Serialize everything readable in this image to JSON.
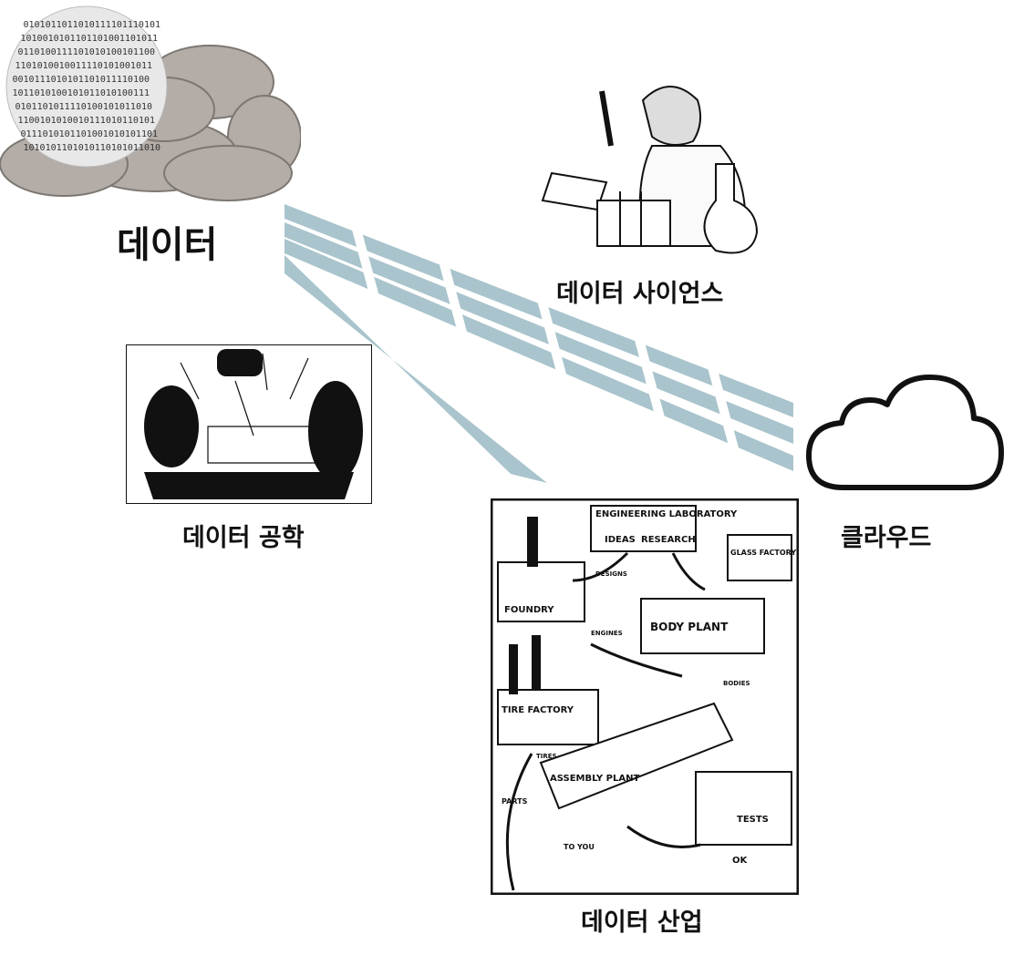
{
  "labels": {
    "data": "데이터",
    "data_science": "데이터 사이언스",
    "data_engineering": "데이터 공학",
    "cloud": "클라우드",
    "data_industry": "데이터 산업"
  },
  "binary_rows": [
    "0101011011010111101110101",
    "1010010101101101001101011",
    "0110100111101010100101100",
    "1101010010011110101001011",
    "0010111010101101011110100",
    "1011010100101011010100111",
    "0101101011110100101011010",
    "1100101010010111010110101",
    "0111010101101001010101101",
    "1010101101010110101011010"
  ],
  "factory": {
    "engineering_laboratory": "ENGINEERING LABORATORY",
    "ideas": "IDEAS",
    "research": "RESEARCH",
    "glass_factory": "GLASS FACTORY",
    "foundry": "FOUNDRY",
    "designs": "DESIGNS",
    "body_plant": "BODY PLANT",
    "engines": "ENGINES",
    "bodies": "BODIES",
    "tire_factory": "TIRE FACTORY",
    "tires": "TIRES",
    "parts": "PARTS",
    "assembly_plant": "ASSEMBLY PLANT",
    "tests": "TESTS",
    "to_you": "TO YOU",
    "ok": "OK"
  },
  "colors": {
    "pipe": "#a9c4cc",
    "rock": "#b3aca7",
    "ink": "#111111"
  }
}
